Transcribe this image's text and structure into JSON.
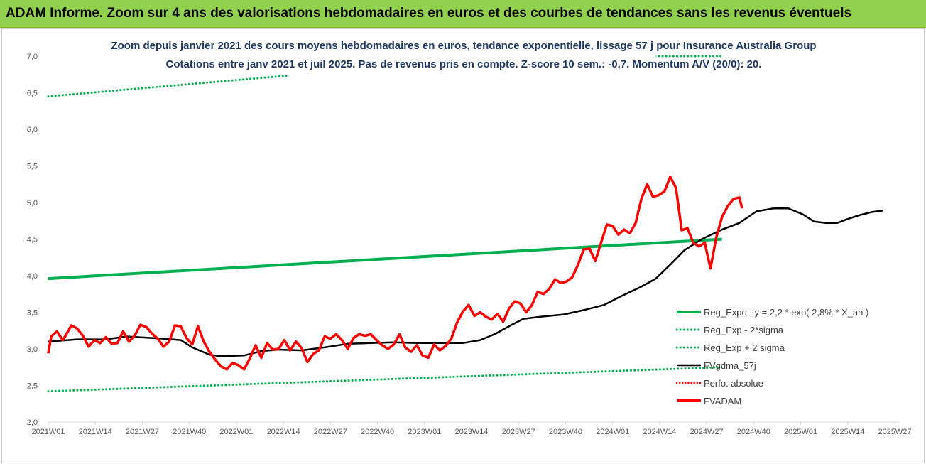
{
  "banner": {
    "title": "ADAM Informe. Zoom sur 4 ans des valorisations hebdomadaires en euros et des courbes de tendances sans les revenus éventuels"
  },
  "colors": {
    "banner_bg": "#92d050",
    "reg_expo": "#00b050",
    "fvgdma": "#000000",
    "perfo": "#ff0000",
    "fvadam": "#ff0000",
    "subtitle": "#1f3864"
  },
  "chart_data": {
    "type": "line",
    "title_line1": "Zoom depuis janvier 2021 des cours moyens hebdomadaires en euros, tendance exponentielle, lissage 57 j pour Insurance Australia Group",
    "title_line2": "Cotations entre janv 2021 et juil 2025. Pas de revenus pris en compte. Z-score 10 sem.: -0,7. Momentum A/V (20/0): 20.",
    "ylim": [
      2.0,
      7.0
    ],
    "yticks": [
      "2,0",
      "2,5",
      "3,0",
      "3,5",
      "4,0",
      "4,5",
      "5,0",
      "5,5",
      "6,0",
      "6,5",
      "7,0"
    ],
    "xticks": [
      "2021W01",
      "2021W14",
      "2021W27",
      "2021W40",
      "2022W01",
      "2022W14",
      "2022W27",
      "2022W40",
      "2023W01",
      "2023W14",
      "2023W27",
      "2023W40",
      "2024W01",
      "2024W14",
      "2024W27",
      "2024W40",
      "2025W01",
      "2025W14",
      "2025W27"
    ],
    "grid": false,
    "legend_position": "right",
    "legend": [
      "Reg_Expo : y = 2,2 * exp( 2,8% *  X_an )",
      "Reg_Exp - 2*sigma",
      "Reg_Exp + 2 sigma",
      "FVgdma_57j",
      "Perfo. absolue",
      "FVADAM"
    ],
    "series": [
      {
        "name": "Reg_Expo : y = 2,2 * exp( 2,8% *  X_an )",
        "style": "solid-thick-green",
        "points": [
          [
            0,
            3.96
          ],
          [
            234,
            4.5
          ]
        ]
      },
      {
        "name": "Reg_Exp - 2*sigma",
        "style": "dotted-green",
        "points": [
          [
            0,
            2.42
          ],
          [
            234,
            2.75
          ]
        ]
      },
      {
        "name": "Reg_Exp + 2 sigma",
        "style": "dotted-green",
        "points": [
          [
            0,
            6.45
          ],
          [
            82,
            6.73
          ],
          [
            212,
            7.0
          ],
          [
            234,
            7.0
          ]
        ]
      },
      {
        "name": "FVgdma_57j",
        "style": "solid-black",
        "points": [
          [
            0,
            3.1
          ],
          [
            10,
            3.13
          ],
          [
            20,
            3.13
          ],
          [
            27,
            3.17
          ],
          [
            40,
            3.14
          ],
          [
            46,
            3.12
          ],
          [
            50,
            3.02
          ],
          [
            56,
            2.92
          ],
          [
            60,
            2.9
          ],
          [
            68,
            2.91
          ],
          [
            74,
            2.97
          ],
          [
            80,
            2.99
          ],
          [
            88,
            2.98
          ],
          [
            96,
            3.02
          ],
          [
            104,
            3.07
          ],
          [
            112,
            3.08
          ],
          [
            120,
            3.09
          ],
          [
            128,
            3.08
          ],
          [
            136,
            3.08
          ],
          [
            144,
            3.08
          ],
          [
            150,
            3.12
          ],
          [
            155,
            3.2
          ],
          [
            161,
            3.33
          ],
          [
            165,
            3.41
          ],
          [
            171,
            3.44
          ],
          [
            179,
            3.47
          ],
          [
            186,
            3.53
          ],
          [
            193,
            3.6
          ],
          [
            199,
            3.72
          ],
          [
            206,
            3.85
          ],
          [
            211,
            3.96
          ],
          [
            216,
            4.15
          ],
          [
            221,
            4.35
          ],
          [
            227,
            4.5
          ],
          [
            234,
            4.63
          ],
          [
            240,
            4.72
          ],
          [
            246,
            4.88
          ],
          [
            252,
            4.92
          ],
          [
            257,
            4.92
          ],
          [
            262,
            4.84
          ],
          [
            266,
            4.74
          ],
          [
            270,
            4.72
          ],
          [
            274,
            4.72
          ],
          [
            278,
            4.78
          ],
          [
            282,
            4.83
          ],
          [
            286,
            4.87
          ],
          [
            290,
            4.89
          ]
        ]
      },
      {
        "name": "FVADAM",
        "style": "solid-thick-red",
        "points": [
          [
            0,
            2.94
          ],
          [
            1,
            3.17
          ],
          [
            3,
            3.24
          ],
          [
            5,
            3.12
          ],
          [
            6,
            3.18
          ],
          [
            8,
            3.32
          ],
          [
            10,
            3.28
          ],
          [
            12,
            3.18
          ],
          [
            14,
            3.03
          ],
          [
            16,
            3.12
          ],
          [
            18,
            3.08
          ],
          [
            20,
            3.16
          ],
          [
            22,
            3.07
          ],
          [
            24,
            3.08
          ],
          [
            26,
            3.24
          ],
          [
            28,
            3.1
          ],
          [
            30,
            3.18
          ],
          [
            32,
            3.33
          ],
          [
            34,
            3.3
          ],
          [
            36,
            3.21
          ],
          [
            38,
            3.14
          ],
          [
            40,
            3.03
          ],
          [
            42,
            3.1
          ],
          [
            44,
            3.32
          ],
          [
            46,
            3.31
          ],
          [
            48,
            3.15
          ],
          [
            50,
            3.06
          ],
          [
            52,
            3.31
          ],
          [
            54,
            3.1
          ],
          [
            56,
            2.96
          ],
          [
            58,
            2.85
          ],
          [
            60,
            2.76
          ],
          [
            62,
            2.72
          ],
          [
            64,
            2.81
          ],
          [
            66,
            2.78
          ],
          [
            68,
            2.72
          ],
          [
            70,
            2.87
          ],
          [
            72,
            3.05
          ],
          [
            74,
            2.88
          ],
          [
            76,
            3.08
          ],
          [
            78,
            2.99
          ],
          [
            80,
            3.0
          ],
          [
            82,
            3.12
          ],
          [
            84,
            2.98
          ],
          [
            86,
            3.1
          ],
          [
            88,
            3.01
          ],
          [
            90,
            2.82
          ],
          [
            92,
            2.93
          ],
          [
            94,
            2.98
          ],
          [
            96,
            3.17
          ],
          [
            98,
            3.14
          ],
          [
            100,
            3.2
          ],
          [
            102,
            3.12
          ],
          [
            104,
            3.0
          ],
          [
            106,
            3.15
          ],
          [
            108,
            3.2
          ],
          [
            110,
            3.18
          ],
          [
            112,
            3.2
          ],
          [
            114,
            3.12
          ],
          [
            116,
            3.05
          ],
          [
            118,
            3.0
          ],
          [
            120,
            3.06
          ],
          [
            122,
            3.2
          ],
          [
            124,
            3.02
          ],
          [
            126,
            2.96
          ],
          [
            128,
            3.05
          ],
          [
            130,
            2.91
          ],
          [
            132,
            2.88
          ],
          [
            134,
            3.06
          ],
          [
            136,
            2.98
          ],
          [
            138,
            3.04
          ],
          [
            140,
            3.14
          ],
          [
            142,
            3.36
          ],
          [
            144,
            3.51
          ],
          [
            146,
            3.6
          ],
          [
            148,
            3.45
          ],
          [
            150,
            3.5
          ],
          [
            152,
            3.44
          ],
          [
            154,
            3.4
          ],
          [
            156,
            3.48
          ],
          [
            158,
            3.37
          ],
          [
            160,
            3.55
          ],
          [
            162,
            3.65
          ],
          [
            164,
            3.62
          ],
          [
            166,
            3.5
          ],
          [
            168,
            3.6
          ],
          [
            170,
            3.78
          ],
          [
            172,
            3.75
          ],
          [
            174,
            3.82
          ],
          [
            176,
            3.95
          ],
          [
            178,
            3.9
          ],
          [
            180,
            3.92
          ],
          [
            182,
            3.98
          ],
          [
            184,
            4.15
          ],
          [
            186,
            4.36
          ],
          [
            188,
            4.37
          ],
          [
            190,
            4.2
          ],
          [
            192,
            4.45
          ],
          [
            194,
            4.7
          ],
          [
            196,
            4.68
          ],
          [
            198,
            4.56
          ],
          [
            200,
            4.63
          ],
          [
            202,
            4.58
          ],
          [
            204,
            4.72
          ],
          [
            206,
            5.05
          ],
          [
            208,
            5.25
          ],
          [
            210,
            5.08
          ],
          [
            212,
            5.1
          ],
          [
            214,
            5.15
          ],
          [
            216,
            5.35
          ],
          [
            218,
            5.2
          ],
          [
            220,
            4.62
          ],
          [
            222,
            4.65
          ],
          [
            224,
            4.45
          ],
          [
            226,
            4.4
          ],
          [
            228,
            4.45
          ],
          [
            230,
            4.1
          ],
          [
            232,
            4.52
          ],
          [
            234,
            4.8
          ],
          [
            236,
            4.95
          ],
          [
            238,
            5.05
          ],
          [
            240,
            5.07
          ],
          [
            241,
            4.92
          ]
        ]
      }
    ]
  }
}
